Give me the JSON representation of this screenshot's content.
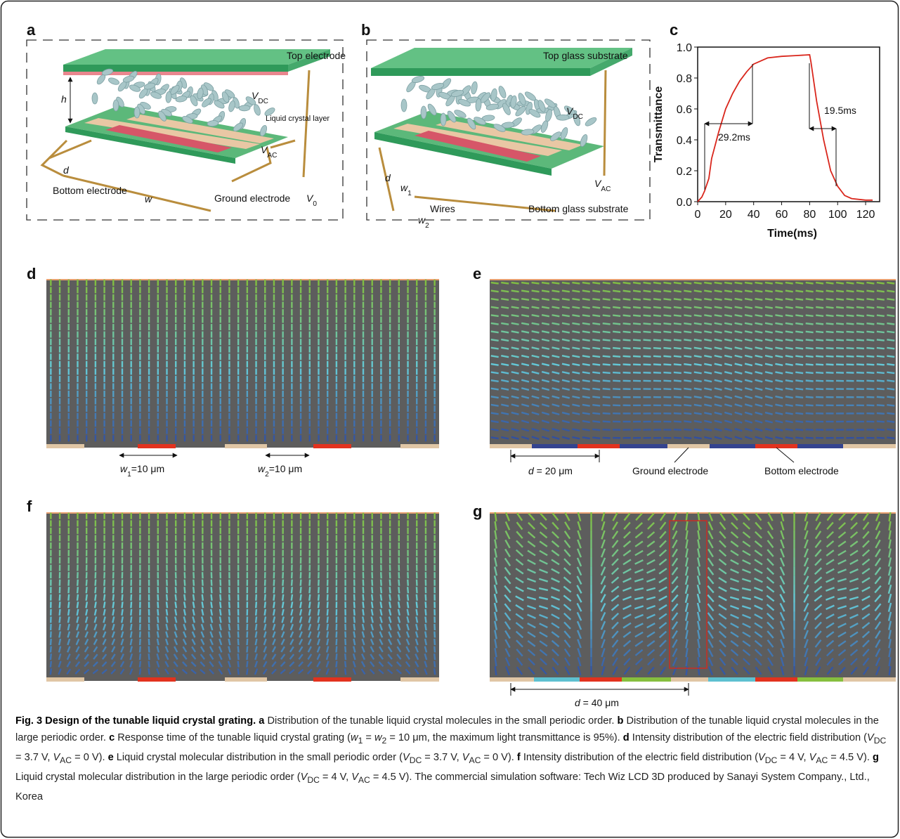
{
  "panels": {
    "a": {
      "label": "a",
      "texts": {
        "top": "Top electrode",
        "vdc": [
          {
            "i": "V"
          },
          {
            "sub": "DC"
          }
        ],
        "lc": "Liquid crystal layer",
        "h": [
          {
            "i": "h"
          }
        ],
        "d": [
          {
            "i": "d"
          }
        ],
        "bottom": "Bottom electrode",
        "w": [
          {
            "i": "w"
          }
        ],
        "ground": "Ground electrode",
        "v0": [
          {
            "i": "V"
          },
          {
            "sub": "0"
          }
        ],
        "vac": [
          {
            "i": "V"
          },
          {
            "sub": "AC"
          }
        ]
      }
    },
    "b": {
      "label": "b",
      "texts": {
        "top": "Top glass substrate",
        "vdc": [
          {
            "i": "V"
          },
          {
            "sub": "DC"
          }
        ],
        "d": [
          {
            "i": "d"
          }
        ],
        "w1": [
          {
            "i": "w"
          },
          {
            "sub": "1"
          }
        ],
        "w2": [
          {
            "i": "w"
          },
          {
            "sub": "2"
          }
        ],
        "wires": "Wires",
        "bottom": "Bottom glass substrate",
        "vac": [
          {
            "i": "V"
          },
          {
            "sub": "AC"
          }
        ]
      }
    },
    "c": {
      "label": "c"
    },
    "d": {
      "label": "d",
      "texts": {
        "w1": [
          {
            "i": "w"
          },
          {
            "sub": "1"
          },
          "=10 μm"
        ],
        "w2": [
          {
            "i": "w"
          },
          {
            "sub": "2"
          },
          "=10 μm"
        ]
      }
    },
    "e": {
      "label": "e",
      "texts": {
        "d": [
          {
            "i": "d"
          },
          " = 20 μm"
        ],
        "ground": "Ground electrode",
        "bottom": "Bottom electrode"
      }
    },
    "f": {
      "label": "f"
    },
    "g": {
      "label": "g",
      "texts": {
        "d": [
          {
            "i": "d"
          },
          " = 40 μm"
        ]
      }
    }
  },
  "chart_data": {
    "type": "line",
    "xlabel": "Time(ms)",
    "ylabel": "Transmittance",
    "annotations": [
      "29.2ms",
      "19.5ms"
    ],
    "x": [
      0,
      3,
      5,
      8,
      10,
      15,
      20,
      25,
      30,
      35,
      40,
      45,
      50,
      60,
      70,
      80,
      81,
      85,
      90,
      95,
      100,
      105,
      110,
      120,
      125
    ],
    "values": [
      0,
      0.03,
      0.07,
      0.15,
      0.28,
      0.45,
      0.6,
      0.7,
      0.78,
      0.84,
      0.89,
      0.91,
      0.93,
      0.94,
      0.945,
      0.95,
      0.9,
      0.65,
      0.4,
      0.2,
      0.1,
      0.04,
      0.02,
      0.01,
      0.01
    ],
    "color": "#d9261c",
    "xlim": [
      0,
      130
    ],
    "xticks": [
      0,
      20,
      40,
      60,
      80,
      100,
      120
    ],
    "ylim": [
      0,
      1
    ],
    "yticks": [
      {
        "value": 0,
        "label": "0.0"
      },
      0.2,
      0.4,
      0.6,
      0.8,
      {
        "value": 1,
        "label": "1.0"
      }
    ]
  },
  "caption": {
    "title": "Fig. 3 Design of the tunable liquid crystal grating.",
    "parts": [
      {
        "label": "a",
        "text": [
          "Distribution of the tunable liquid crystal molecules in the small periodic order."
        ]
      },
      {
        "label": "b",
        "text": [
          "Distribution of the tunable liquid crystal molecules in the large periodic order."
        ]
      },
      {
        "label": "c",
        "text": [
          "Response time of the tunable liquid crystal grating (",
          {
            "i": "w"
          },
          {
            "sub": "1"
          },
          " = ",
          {
            "i": "w"
          },
          {
            "sub": "2"
          },
          " = 10 μm, the maximum light transmittance is 95%)."
        ]
      },
      {
        "label": "d",
        "text": [
          "Intensity distribution of the electric field distribution (",
          {
            "i": "V"
          },
          {
            "sub": "DC"
          },
          " = 3.7 V, ",
          {
            "i": "V"
          },
          {
            "sub": "AC"
          },
          " = 0 V)."
        ]
      },
      {
        "label": "e",
        "text": [
          "Liquid crystal molecular distribution in the small periodic order (",
          {
            "i": "V"
          },
          {
            "sub": "DC"
          },
          " = 3.7 V, ",
          {
            "i": "V"
          },
          {
            "sub": "AC"
          },
          " = 0 V)."
        ]
      },
      {
        "label": "f",
        "text": [
          "Intensity distribution of the electric field distribution (",
          {
            "i": "V"
          },
          {
            "sub": "DC"
          },
          " = 4 V, ",
          {
            "i": "V"
          },
          {
            "sub": "AC"
          },
          " = 4.5 V)."
        ]
      },
      {
        "label": "g",
        "text": [
          "Liquid crystal molecular distribution in the large periodic order (",
          {
            "i": "V"
          },
          {
            "sub": "DC"
          },
          " = 4 V, ",
          {
            "i": "V"
          },
          {
            "sub": "AC"
          },
          " = 4.5 V). The commercial simulation software: Tech Wiz LCD 3D produced by Sanayi System Company., Ltd., Korea"
        ]
      }
    ]
  }
}
